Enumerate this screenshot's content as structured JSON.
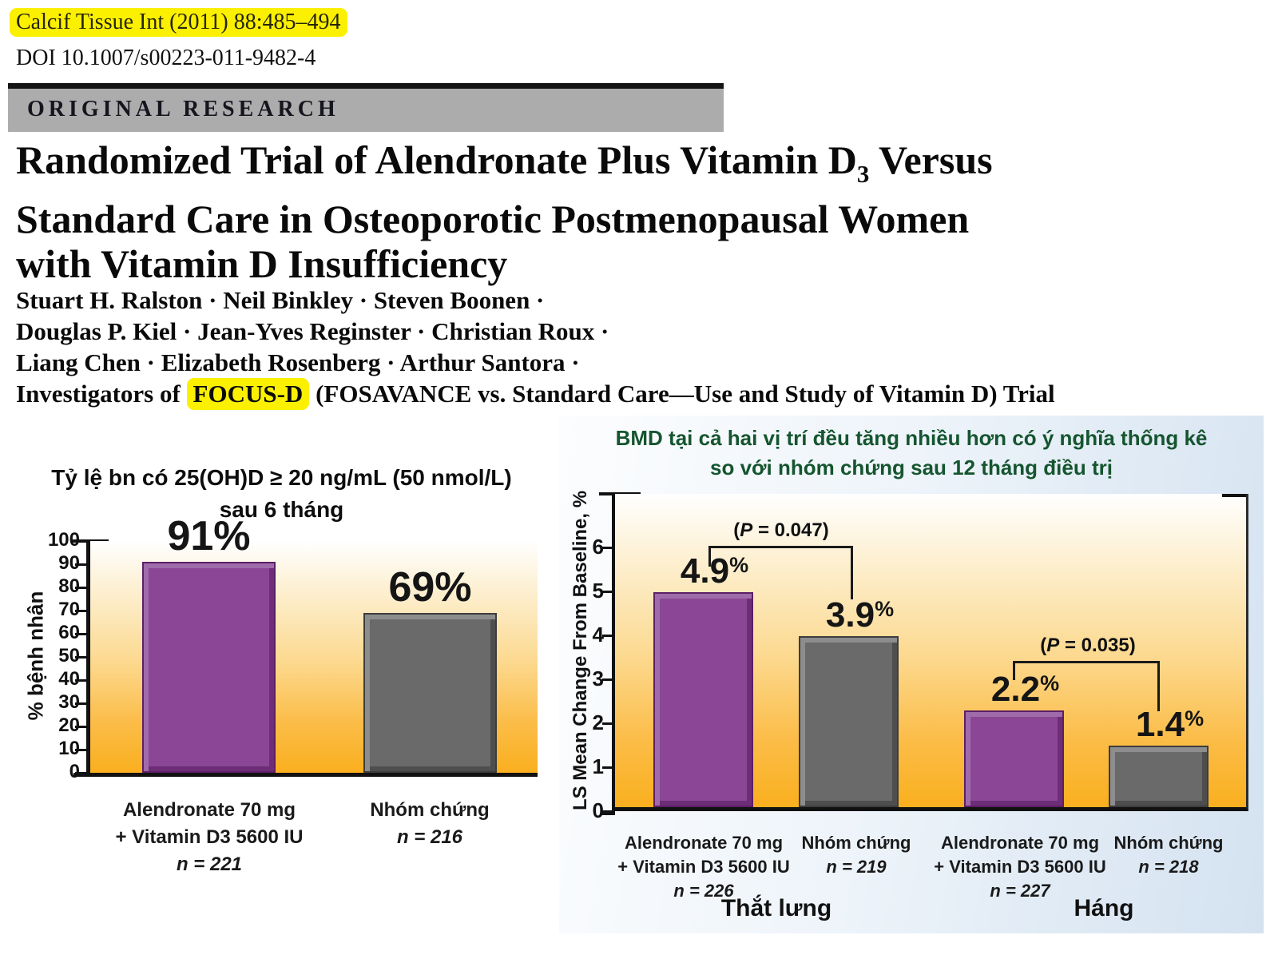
{
  "header": {
    "citation": "Calcif Tissue Int (2011) 88:485–494",
    "doi": "DOI 10.1007/s00223-011-9482-4",
    "section_label": "ORIGINAL RESEARCH",
    "title_line1_pre": "Randomized Trial of Alendronate Plus Vitamin D",
    "title_sub": "3",
    "title_line1_post": " Versus",
    "title_line2": "Standard Care in Osteoporotic Postmenopausal Women",
    "title_line3": "with Vitamin D Insufficiency",
    "authors_line1": "Stuart H. Ralston · Neil Binkley · Steven Boonen ·",
    "authors_line2": "Douglas P. Kiel · Jean-Yves Reginster · Christian Roux ·",
    "authors_line3": "Liang Chen · Elizabeth Rosenberg · Arthur Santora ·",
    "authors_line4_pre": "Investigators of ",
    "authors_line4_highlight": "FOCUS-D",
    "authors_line4_post": " (FOSAVANCE vs. Standard Care—Use and Study of Vitamin D) Trial"
  },
  "chart_data": [
    {
      "type": "bar",
      "title_lines": [
        "Tỷ lệ bn có 25(OH)D ≥ 20 ng/mL (50 nmol/L)",
        "sau 6 tháng"
      ],
      "ylabel": "% bệnh nhân",
      "ylim": [
        0,
        100
      ],
      "yticks": [
        0,
        10,
        20,
        30,
        40,
        50,
        60,
        70,
        80,
        90,
        100
      ],
      "grid": false,
      "categories": [
        "Alendronate 70 mg + Vitamin D3 5600 IU",
        "Nhóm chứng"
      ],
      "category_lines": [
        [
          "Alendronate 70 mg",
          "+ Vitamin D3 5600 IU"
        ],
        [
          "Nhóm chứng"
        ]
      ],
      "n_labels": [
        "n = 221",
        "n = 216"
      ],
      "values": [
        91,
        69
      ],
      "value_labels": [
        "91%",
        "69%"
      ],
      "bar_colors": [
        "#8b4796",
        "#6a6a6a"
      ],
      "background_gradient": [
        "#ffffff",
        "#faaf1e"
      ]
    },
    {
      "type": "bar",
      "title_lines": [
        "BMD tại cả hai vị trí đều tăng nhiều hơn có ý nghĩa thống kê",
        "so với nhóm chứng sau 12 tháng điều trị"
      ],
      "title_color": "#15552f",
      "ylabel": "LS Mean Change From Baseline, %",
      "ylim": [
        0,
        7
      ],
      "yticks": [
        0,
        1,
        2,
        3,
        4,
        5,
        6
      ],
      "grid": false,
      "groups": [
        "Thắt lưng",
        "Háng"
      ],
      "categories": [
        "Alendronate 70 mg + Vitamin D3 5600 IU",
        "Nhóm chứng",
        "Alendronate 70 mg + Vitamin D3 5600 IU",
        "Nhóm chứng"
      ],
      "category_lines": [
        [
          "Alendronate 70 mg",
          "+ Vitamin D3 5600 IU"
        ],
        [
          "Nhóm chứng"
        ],
        [
          "Alendronate 70 mg",
          "+ Vitamin D3 5600 IU"
        ],
        [
          "Nhóm chứng"
        ]
      ],
      "n_labels": [
        "n = 226",
        "n = 219",
        "n = 227",
        "n = 218"
      ],
      "values": [
        4.9,
        3.9,
        2.2,
        1.4
      ],
      "value_labels": [
        "4.9",
        "3.9",
        "2.2",
        "1.4"
      ],
      "percent_sign": "%",
      "p_values": [
        {
          "prefix": "(",
          "variable": "P",
          "suffix": " = 0.047)"
        },
        {
          "prefix": "(",
          "variable": "P",
          "suffix": " = 0.035)"
        }
      ],
      "bar_colors": [
        "#8b4796",
        "#6a6a6a",
        "#8b4796",
        "#6a6a6a"
      ],
      "background_gradient": [
        "#ffffff",
        "#faaf1e"
      ]
    }
  ]
}
